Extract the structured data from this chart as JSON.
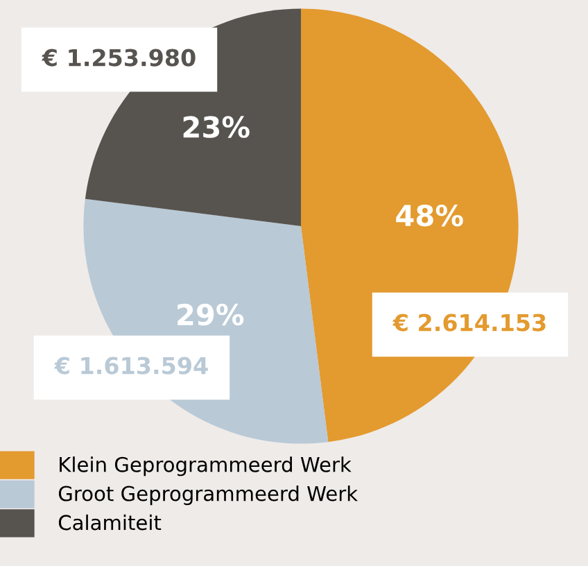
{
  "chart_data": {
    "type": "pie",
    "categories": [
      "Klein Geprogrammeerd Werk",
      "Groot Geprogrammeerd Werk",
      "Calamiteit"
    ],
    "values": [
      48,
      29,
      23
    ],
    "value_labels": [
      "48%",
      "29%",
      "23%"
    ],
    "colors": [
      "#e39a2f",
      "#b9c9d6",
      "#57534f"
    ],
    "annotations": [
      "€ 2.614.153",
      "€ 1.613.594",
      "€ 1.253.980"
    ],
    "legend": "bottom"
  }
}
